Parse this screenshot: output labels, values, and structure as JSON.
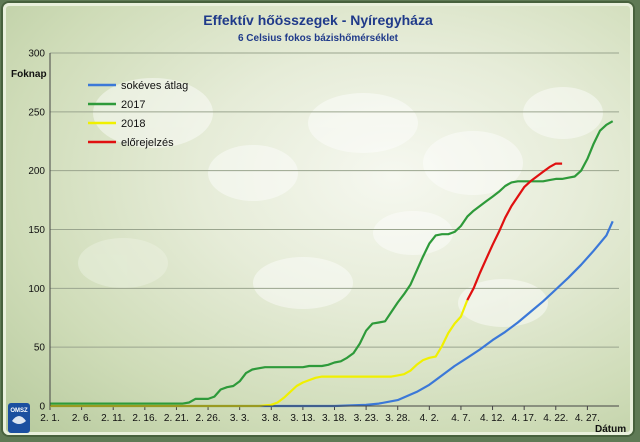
{
  "chart_data": {
    "type": "line",
    "title": "Effektív hőösszegek - Nyíregyháza",
    "subtitle": "6 Celsius fokos bázishőmérséklet",
    "ylabel": "Foknap",
    "xlabel": "Dátum",
    "ylim": [
      0,
      300
    ],
    "yticks": [
      0,
      50,
      100,
      150,
      200,
      250,
      300
    ],
    "xlim": [
      0,
      90
    ],
    "xticks": [
      {
        "x": 0,
        "label": "2. 1."
      },
      {
        "x": 5,
        "label": "2. 6."
      },
      {
        "x": 10,
        "label": "2. 11."
      },
      {
        "x": 15,
        "label": "2. 16."
      },
      {
        "x": 20,
        "label": "2. 21."
      },
      {
        "x": 25,
        "label": "2. 26."
      },
      {
        "x": 30,
        "label": "3. 3."
      },
      {
        "x": 35,
        "label": "3. 8."
      },
      {
        "x": 40,
        "label": "3. 13."
      },
      {
        "x": 45,
        "label": "3. 18."
      },
      {
        "x": 50,
        "label": "3. 23."
      },
      {
        "x": 55,
        "label": "3. 28."
      },
      {
        "x": 60,
        "label": "4. 2."
      },
      {
        "x": 65,
        "label": "4. 7."
      },
      {
        "x": 70,
        "label": "4. 12."
      },
      {
        "x": 75,
        "label": "4. 17."
      },
      {
        "x": 80,
        "label": "4. 22."
      },
      {
        "x": 85,
        "label": "4. 27."
      }
    ],
    "grid": true,
    "legend_position": "top-left",
    "series": [
      {
        "name": "sokéves átlag",
        "color": "#3b78d8",
        "x": [
          0,
          10,
          20,
          30,
          40,
          45,
          50,
          52,
          55,
          58,
          60,
          62,
          64,
          66,
          68,
          70,
          72,
          74,
          76,
          78,
          80,
          82,
          84,
          86,
          88,
          89
        ],
        "y": [
          0,
          0,
          0,
          0,
          0,
          0,
          1,
          2,
          5,
          12,
          18,
          26,
          34,
          41,
          48,
          56,
          63,
          71,
          80,
          89,
          99,
          109,
          120,
          132,
          145,
          157
        ]
      },
      {
        "name": "2017",
        "color": "#2e9a3a",
        "x": [
          0,
          10,
          19,
          21,
          22,
          23,
          24,
          25,
          26,
          27,
          28,
          29,
          30,
          31,
          32,
          33,
          34,
          35,
          36,
          38,
          40,
          41,
          42,
          43,
          44,
          45,
          46,
          47,
          48,
          49,
          50,
          51,
          52,
          53,
          54,
          55,
          56,
          57,
          58,
          59,
          60,
          61,
          62,
          63,
          64,
          65,
          66,
          67,
          68,
          69,
          70,
          71,
          72,
          73,
          74,
          75,
          76,
          77,
          78,
          79,
          80,
          81,
          82,
          83,
          84,
          85,
          86,
          87,
          88,
          89
        ],
        "y": [
          2,
          2,
          2,
          2,
          3,
          6,
          6,
          6,
          8,
          14,
          16,
          17,
          21,
          28,
          31,
          32,
          33,
          33,
          33,
          33,
          33,
          34,
          34,
          34,
          35,
          37,
          38,
          41,
          45,
          53,
          64,
          70,
          71,
          72,
          80,
          88,
          95,
          103,
          115,
          127,
          138,
          145,
          146,
          146,
          148,
          153,
          161,
          166,
          170,
          174,
          178,
          182,
          187,
          190,
          191,
          191,
          191,
          191,
          191,
          192,
          193,
          193,
          194,
          195,
          200,
          210,
          223,
          234,
          239,
          242
        ]
      },
      {
        "name": "2018",
        "color": "#f0f000",
        "x": [
          0,
          10,
          20,
          30,
          33,
          35,
          36,
          37,
          38,
          39,
          40,
          41,
          42,
          43,
          44,
          45,
          46,
          47,
          48,
          49,
          50,
          51,
          52,
          53,
          54,
          55,
          56,
          57,
          58,
          59,
          60,
          61,
          62,
          63,
          64,
          65,
          66
        ],
        "y": [
          0,
          0,
          0,
          0,
          0,
          1,
          3,
          7,
          12,
          17,
          20,
          22,
          24,
          25,
          25,
          25,
          25,
          25,
          25,
          25,
          25,
          25,
          25,
          25,
          25,
          26,
          27,
          30,
          35,
          39,
          41,
          42,
          51,
          62,
          70,
          76,
          90
        ]
      },
      {
        "name": "előrejelzés",
        "color": "#e01010",
        "x": [
          66,
          67,
          68,
          69,
          70,
          71,
          72,
          73,
          74,
          75,
          76,
          77,
          78,
          79,
          80,
          81
        ],
        "y": [
          90,
          100,
          113,
          125,
          137,
          148,
          160,
          170,
          178,
          186,
          191,
          195,
          199,
          203,
          206,
          206
        ]
      }
    ]
  },
  "logo": {
    "text": "OMSZ"
  }
}
